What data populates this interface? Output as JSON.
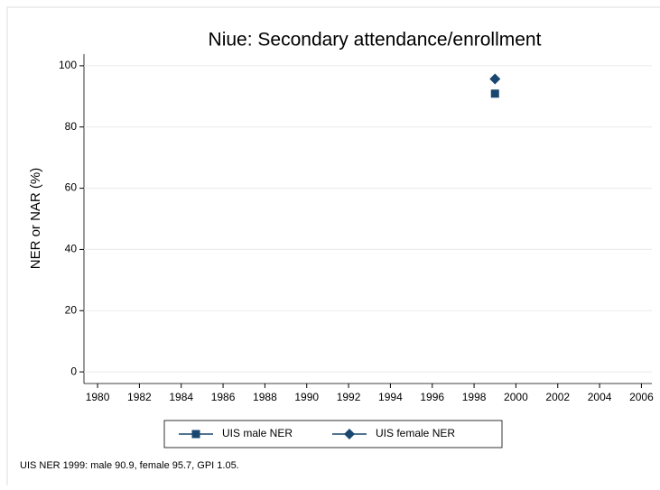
{
  "chart_data": {
    "type": "scatter",
    "title": "Niue: Secondary attendance/enrollment",
    "y_label": "NER or NAR (%)",
    "note": "UIS NER 1999: male 90.9, female 95.7, GPI 1.05.",
    "x": [
      1999
    ],
    "series": [
      {
        "name": "UIS male NER",
        "color": "#1a476f",
        "marker": "square",
        "values": [
          90.9
        ]
      },
      {
        "name": "UIS female NER",
        "color": "#1a476f",
        "marker": "diamond",
        "values": [
          95.7
        ]
      }
    ],
    "xlim": [
      1979.35,
      2006.5
    ],
    "xticks": [
      1980,
      1982,
      1984,
      1986,
      1988,
      1990,
      1992,
      1994,
      1996,
      1998,
      2000,
      2002,
      2004,
      2006
    ],
    "ylim": [
      -3.8,
      103.8
    ],
    "yticks": [
      0,
      20,
      40,
      60,
      80,
      100
    ],
    "grid": true
  }
}
